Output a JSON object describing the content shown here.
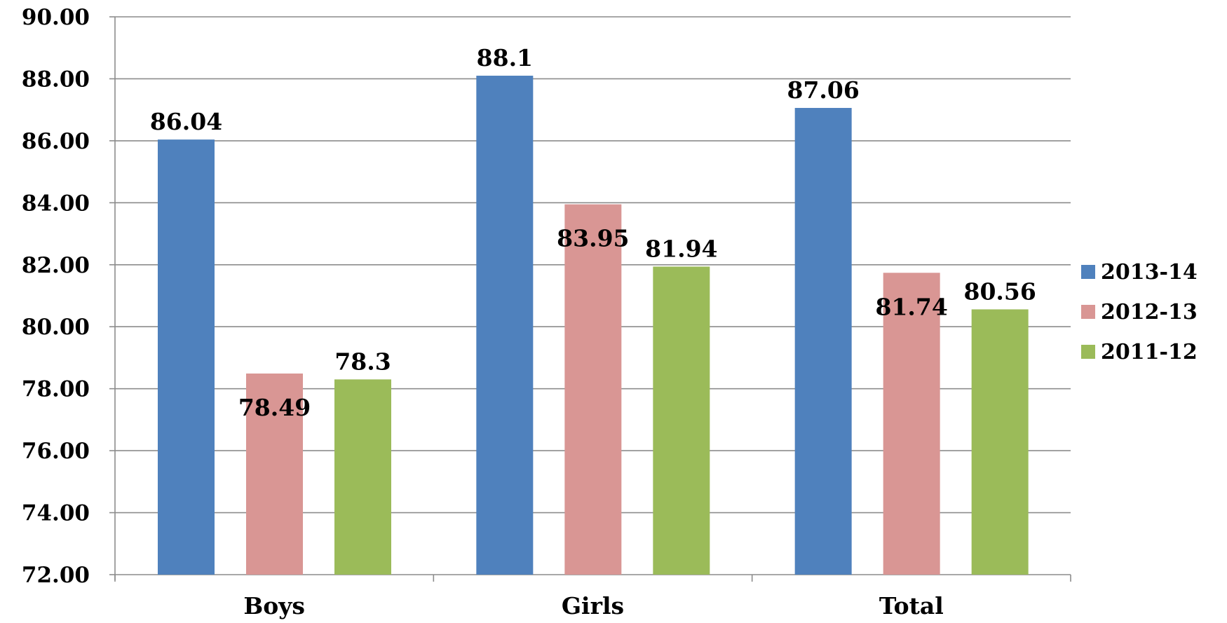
{
  "chart_data": {
    "type": "bar",
    "title": "",
    "xlabel": "",
    "ylabel": "",
    "categories": [
      "Boys",
      "Girls",
      "Total"
    ],
    "series": [
      {
        "name": "2013-14",
        "color": "#4f81bd",
        "values": [
          86.04,
          88.1,
          87.06
        ],
        "labels": [
          "86.04",
          "88.1",
          "87.06"
        ]
      },
      {
        "name": "2012-13",
        "color": "#d99694",
        "values": [
          78.49,
          83.95,
          81.74
        ],
        "labels": [
          "78.49",
          "83.95",
          "81.74"
        ]
      },
      {
        "name": "2011-12",
        "color": "#9bbb59",
        "values": [
          78.3,
          81.94,
          80.56
        ],
        "labels": [
          "78.3",
          "81.94",
          "80.56"
        ]
      }
    ],
    "ylim": [
      72,
      90
    ],
    "yticks": [
      "72.00",
      "74.00",
      "76.00",
      "78.00",
      "80.00",
      "82.00",
      "84.00",
      "86.00",
      "88.00",
      "90.00"
    ],
    "grid": true,
    "legend_position": "right"
  }
}
